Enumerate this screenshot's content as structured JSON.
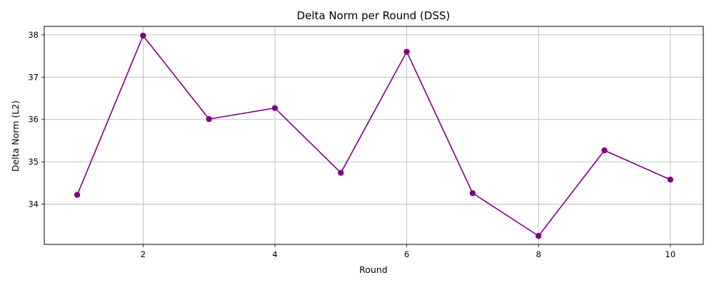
{
  "chart_data": {
    "type": "line",
    "title": "Delta Norm per Round (DSS)",
    "xlabel": "Round",
    "ylabel": "Delta Norm (L2)",
    "x": [
      1,
      2,
      3,
      4,
      5,
      6,
      7,
      8,
      9,
      10
    ],
    "series": [
      {
        "values": [
          34.22,
          37.98,
          36.01,
          36.27,
          34.74,
          37.6,
          34.26,
          33.25,
          35.27,
          34.58
        ],
        "color": "#800080",
        "marker": "circle"
      }
    ],
    "xlim": [
      0.5,
      10.5
    ],
    "ylim": [
      33.05,
      38.2
    ],
    "xticks": [
      2,
      4,
      6,
      8,
      10
    ],
    "yticks": [
      34,
      35,
      36,
      37,
      38
    ],
    "grid": true,
    "legend": "none"
  }
}
